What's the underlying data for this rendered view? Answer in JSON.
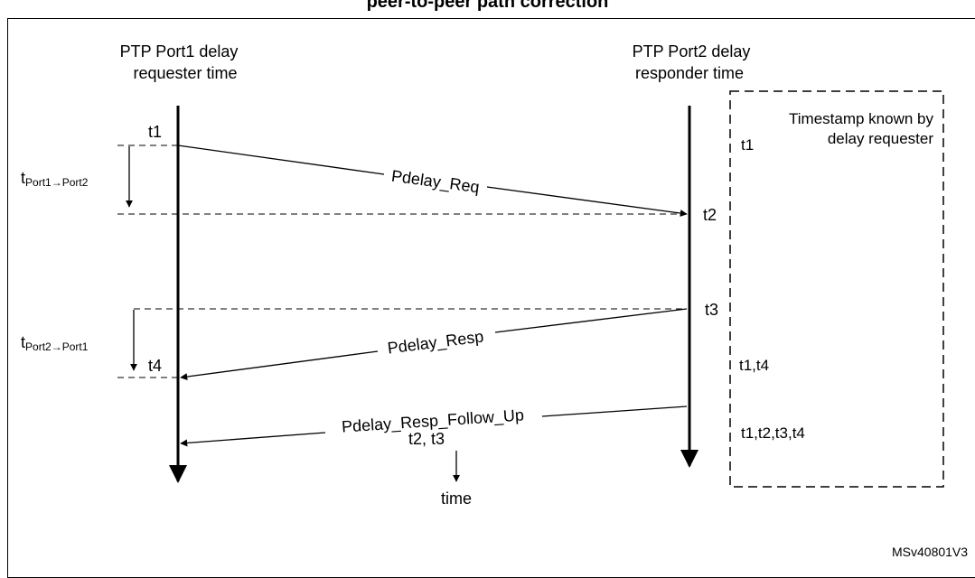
{
  "title": "peer-to-peer path correction",
  "port1": {
    "line1": "PTP Port1 delay",
    "line2": "requester time"
  },
  "port2": {
    "line1": "PTP Port2 delay",
    "line2": "responder time"
  },
  "timestamps": {
    "t1": "t1",
    "t2": "t2",
    "t3": "t3",
    "t4": "t4"
  },
  "durations": {
    "p1p2_base": "t",
    "p1p2_sub": "Port1→Port2",
    "p2p1_base": "t",
    "p2p1_sub": "Port2→Port1"
  },
  "messages": {
    "req": "Pdelay_Req",
    "resp": "Pdelay_Resp",
    "follow_up": "Pdelay_Resp_Follow_Up",
    "follow_up_payload": "t2, t3"
  },
  "time_label": "time",
  "known_box": {
    "title_line1": "Timestamp known by",
    "title_line2": "delay requester",
    "row1": "t1",
    "row2": "t1,t4",
    "row3": "t1,t2,t3,t4"
  },
  "figure_id": "MSv40801V3"
}
